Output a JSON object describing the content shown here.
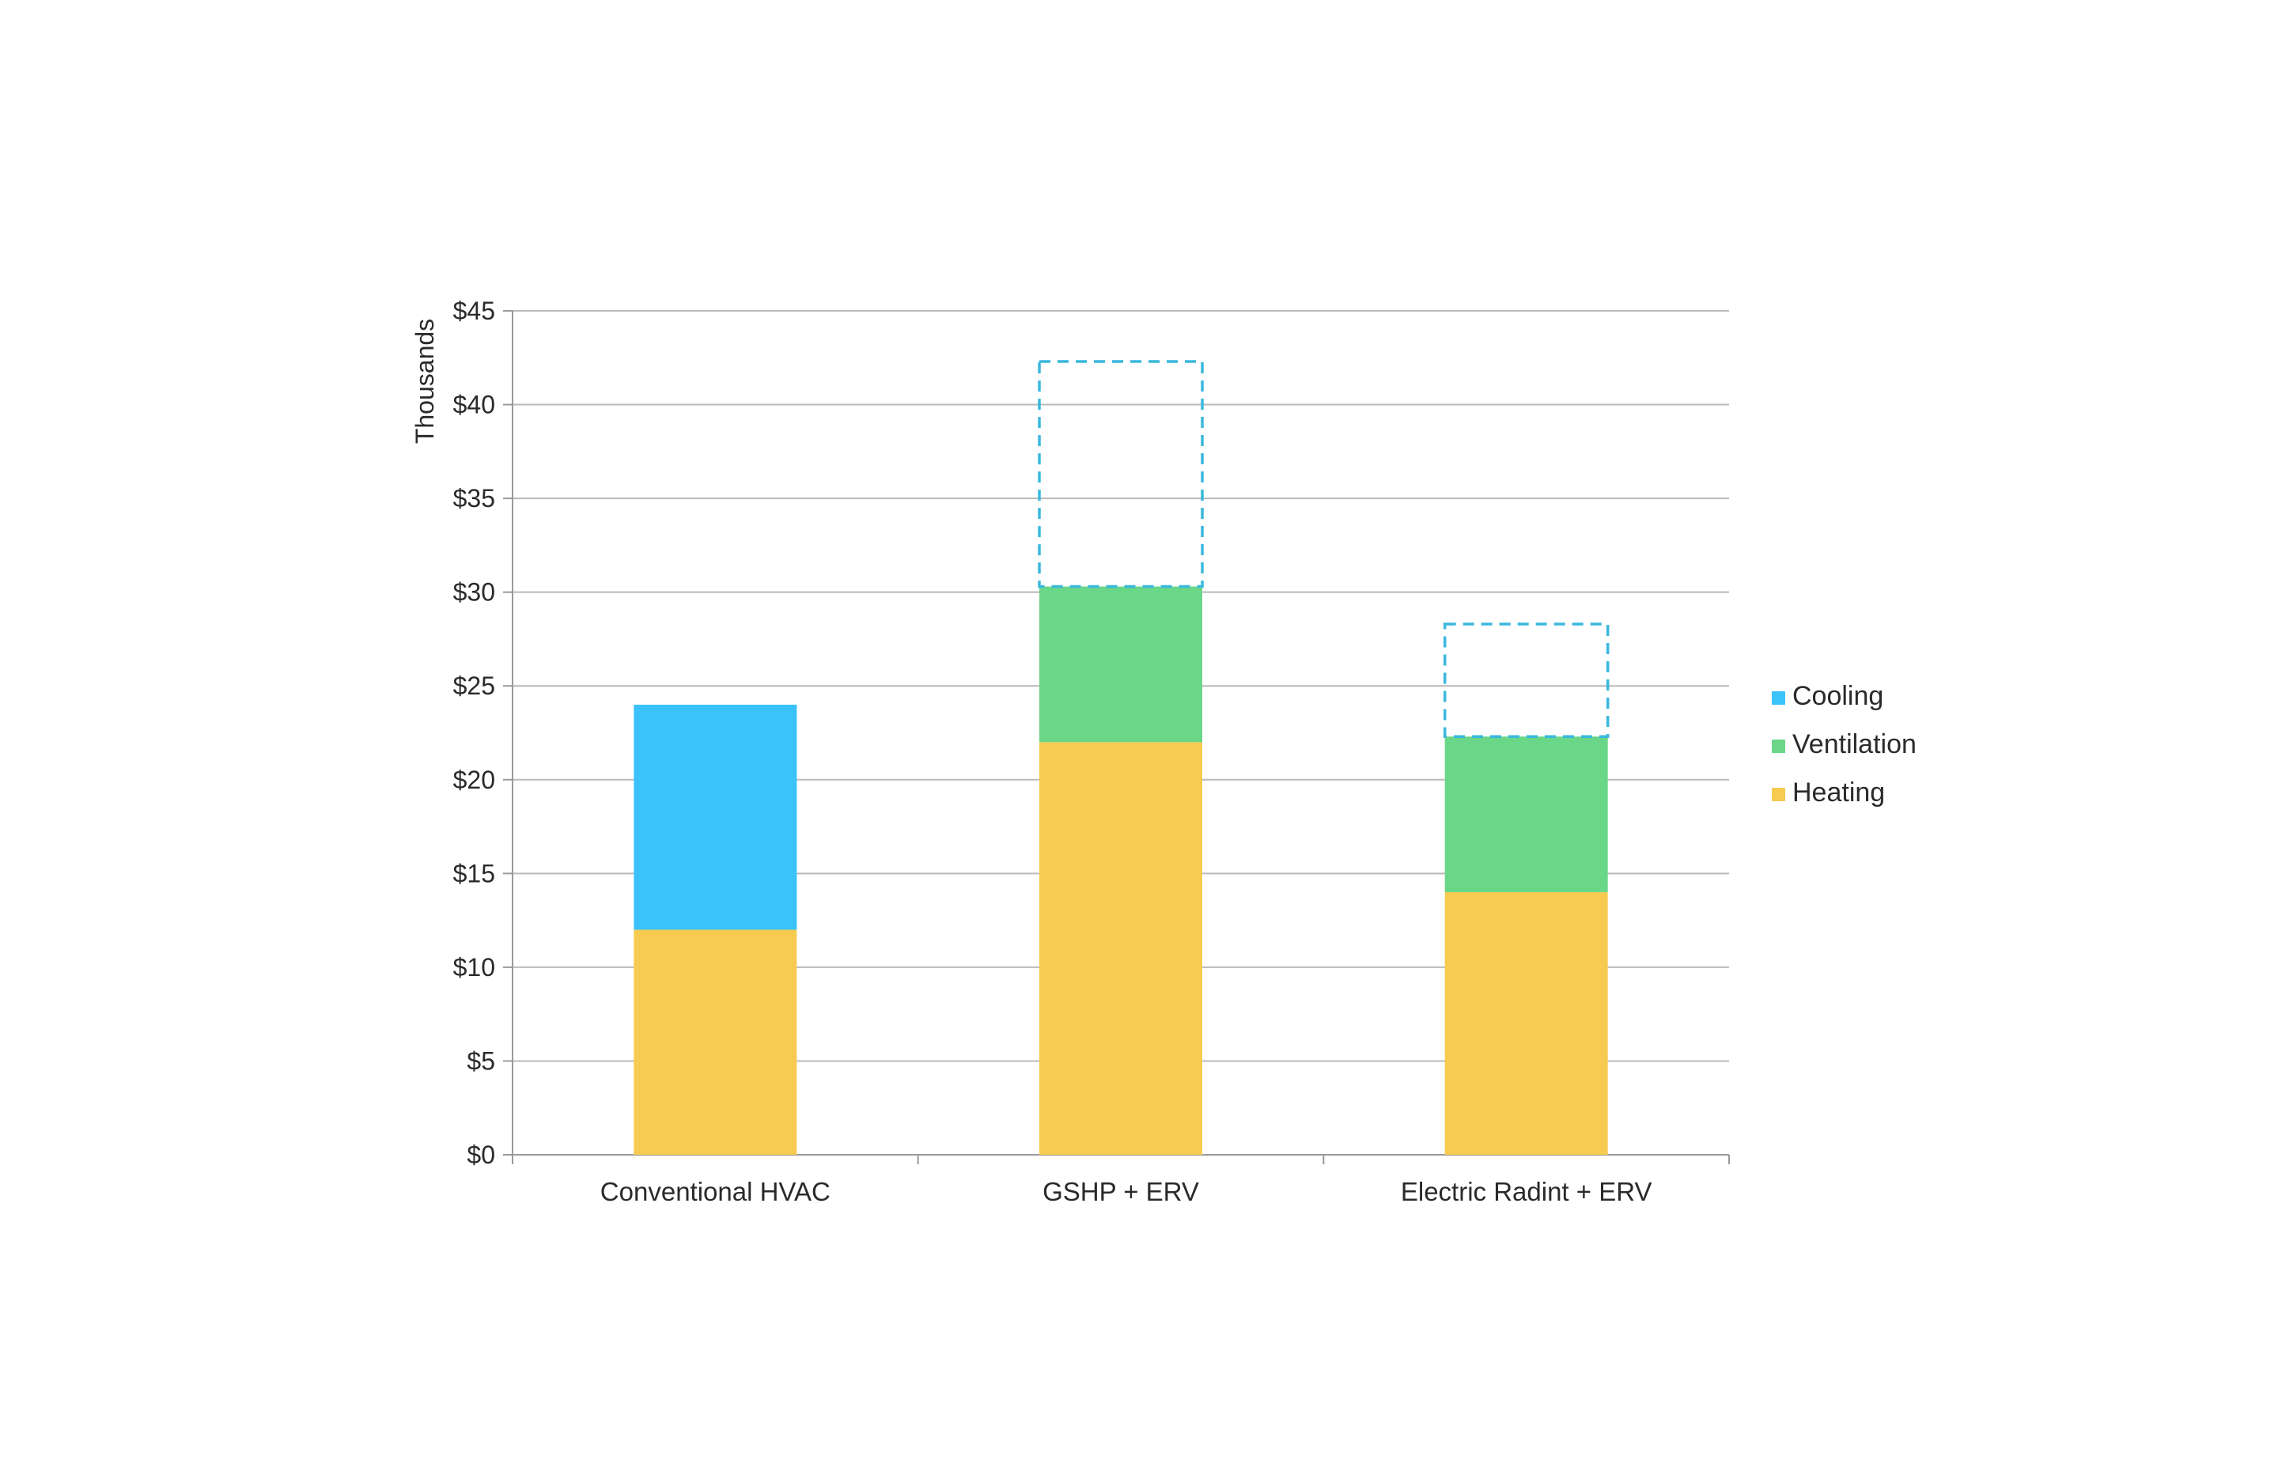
{
  "chart_data": {
    "type": "bar",
    "stacked": true,
    "title": "",
    "xlabel": "",
    "ylabel": "Thousands",
    "ylim": [
      0,
      45
    ],
    "ytick_step": 5,
    "ytick_labels": [
      "$0",
      "$5",
      "$10",
      "$15",
      "$20",
      "$25",
      "$30",
      "$35",
      "$40",
      "$45"
    ],
    "categories": [
      "Conventional HVAC",
      "GSHP + ERV",
      "Electric Radint + ERV"
    ],
    "series": [
      {
        "name": "Heating",
        "color": "#F7CB50",
        "values": [
          12,
          22,
          14
        ]
      },
      {
        "name": "Ventilation",
        "color": "#6AD688",
        "values": [
          0,
          8.3,
          8.3
        ]
      },
      {
        "name": "Cooling",
        "color": "#3AC2FB",
        "values": [
          12,
          0,
          0
        ]
      }
    ],
    "dashed_extensions": {
      "color": "#3AB8DD",
      "values": [
        null,
        [
          30.3,
          42.3
        ],
        [
          22.3,
          28.3
        ]
      ]
    },
    "grid": true,
    "legend_position": "right",
    "legend_order": [
      "Cooling",
      "Ventilation",
      "Heating"
    ]
  }
}
